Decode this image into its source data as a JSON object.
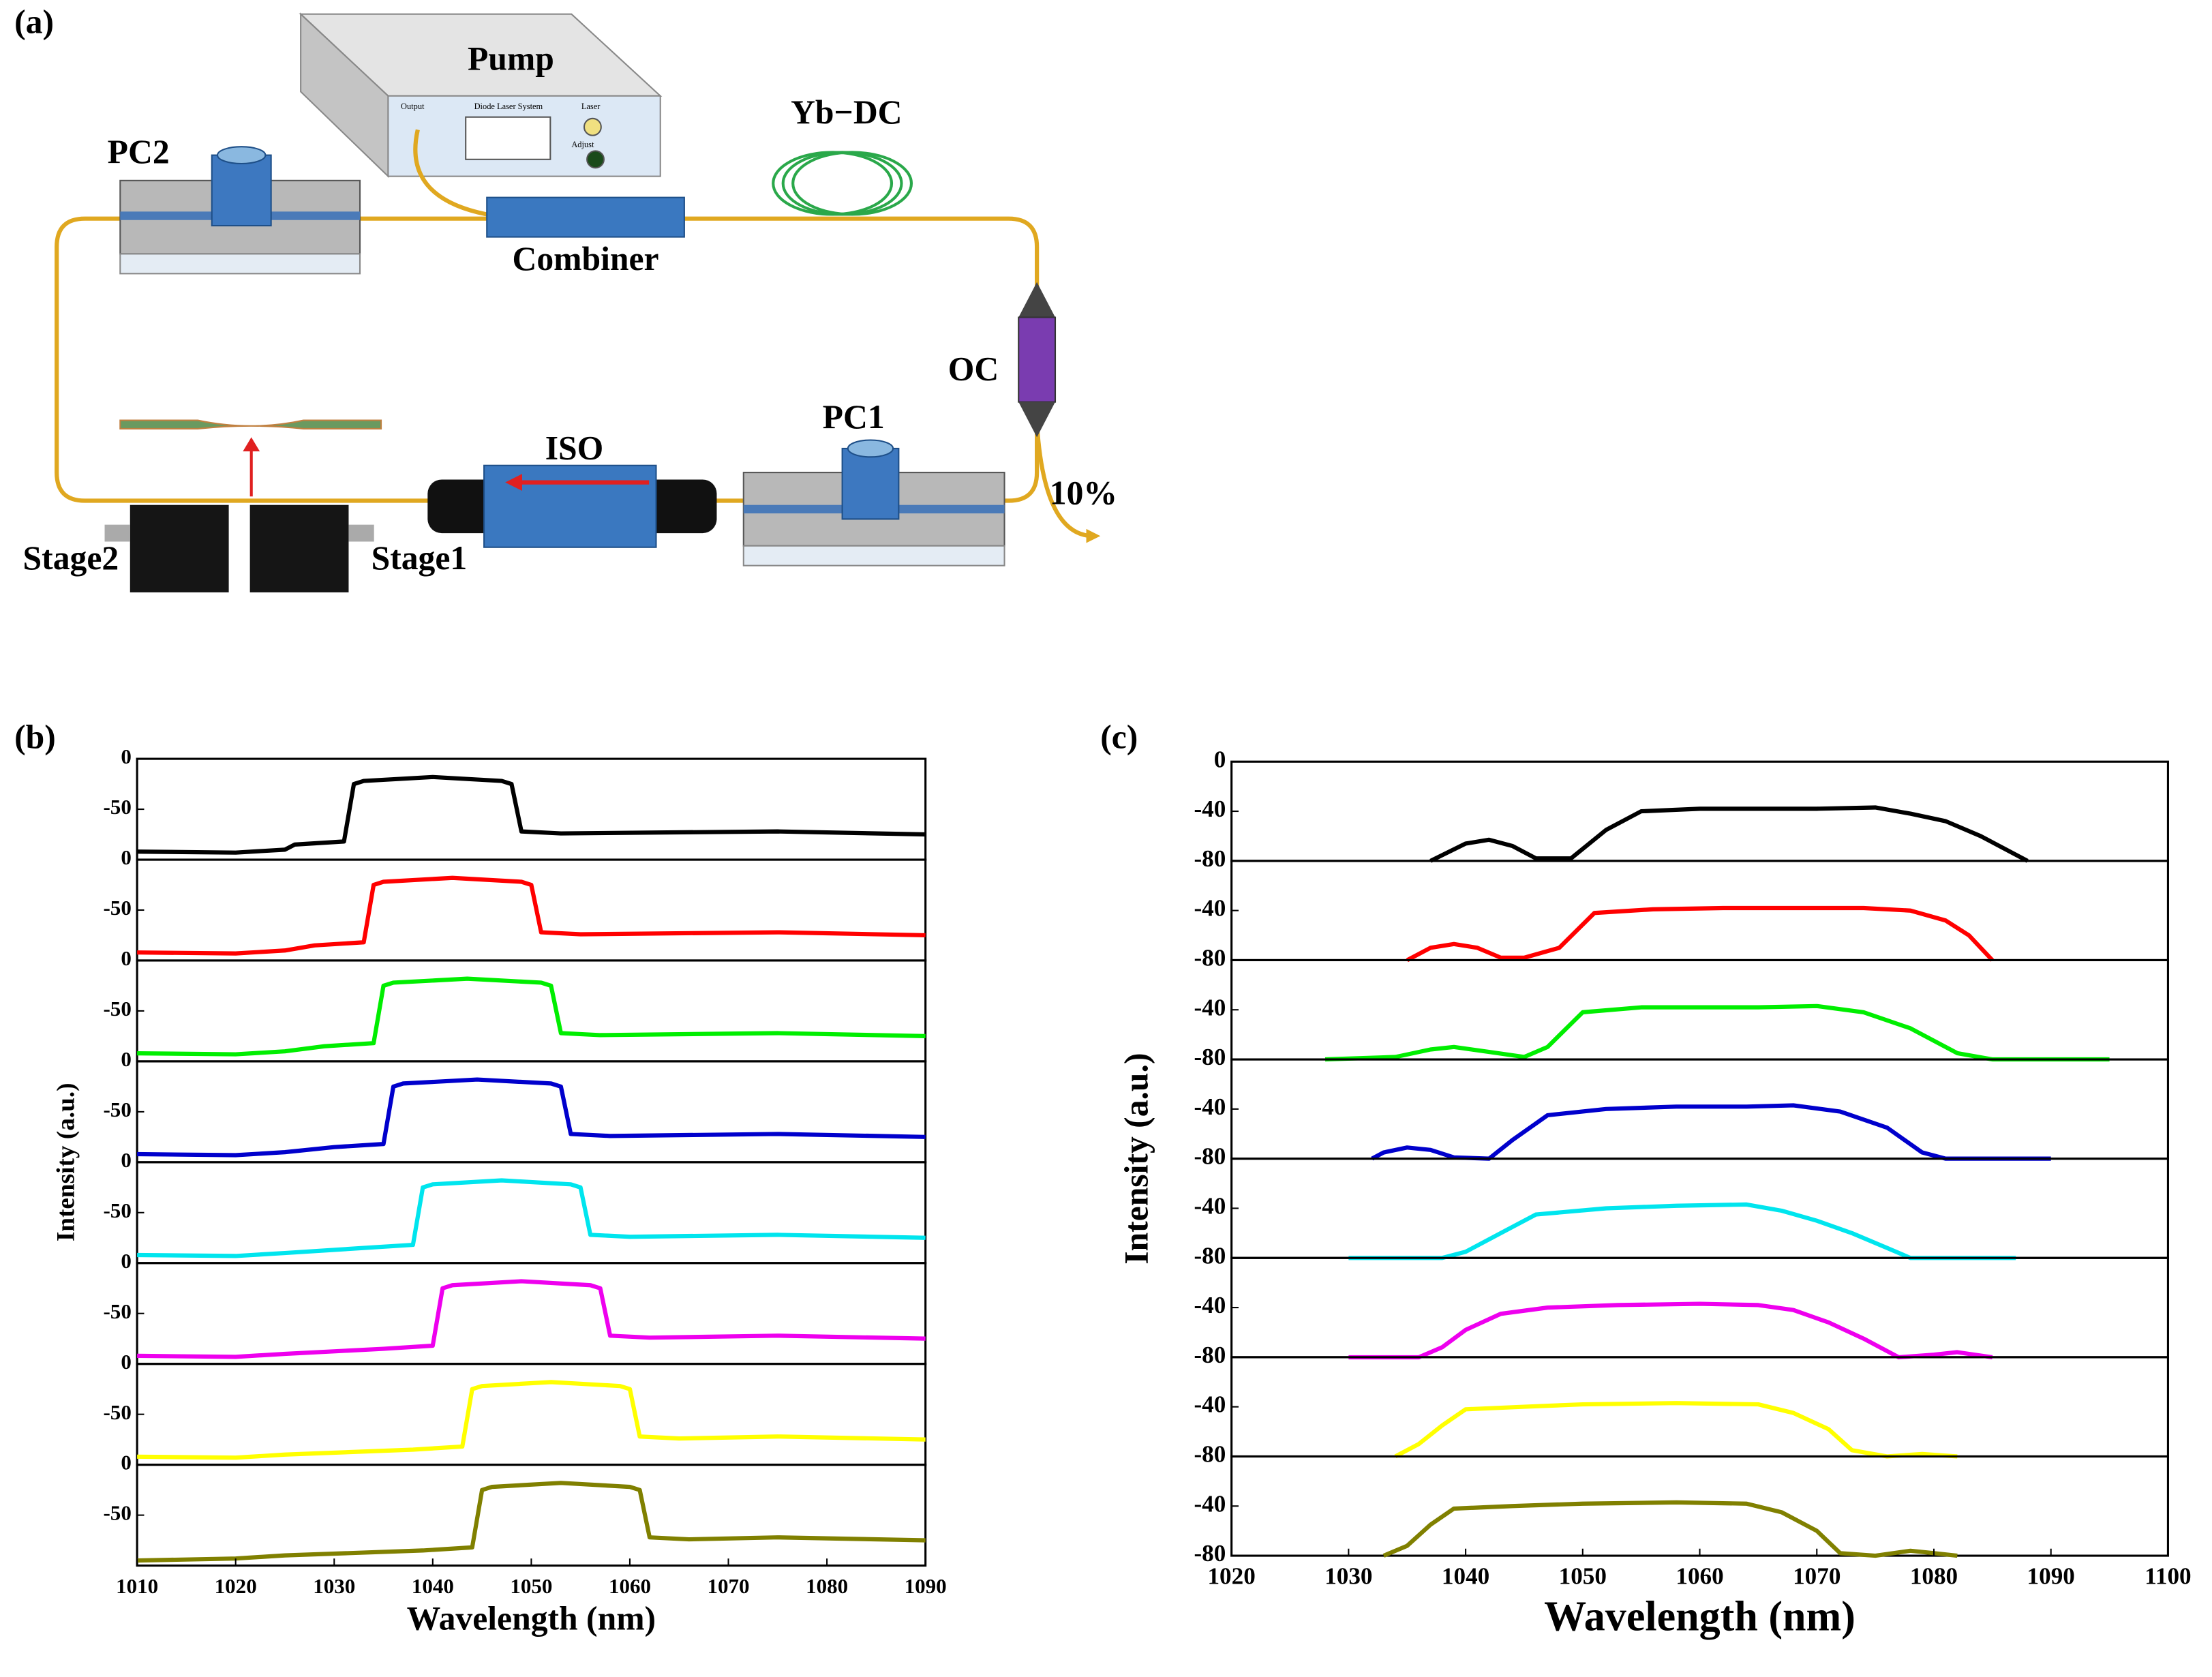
{
  "figure_a": {
    "panel_label": "(a)",
    "pump": "Pump",
    "output": "Output",
    "diode": "Diode Laser System",
    "laser": "Laser",
    "adjust": "Adjust",
    "ybdc": "Yb−DC",
    "pc2": "PC2",
    "combiner": "Combiner",
    "oc": "OC",
    "pc1": "PC1",
    "iso": "ISO",
    "ratio": "10%",
    "stage2": "Stage2",
    "stage1": "Stage1"
  },
  "chart_data": [
    {
      "type": "line",
      "panel_label": "(b)",
      "xlabel": "Wavelength (nm)",
      "ylabel": "Intensity (a.u.)",
      "xlim": [
        1010,
        1090
      ],
      "xticks": [
        1010,
        1020,
        1030,
        1040,
        1050,
        1060,
        1070,
        1080,
        1090
      ],
      "ylim": [
        -100,
        0
      ],
      "series": [
        {
          "color": "#000000",
          "yticks": [
            0,
            -50
          ],
          "x": [
            1010,
            1020,
            1025,
            1026,
            1031,
            1032,
            1033,
            1040,
            1047,
            1048,
            1049,
            1053,
            1075,
            1090
          ],
          "values": [
            -92,
            -93,
            -90,
            -85,
            -82,
            -25,
            -22,
            -18,
            -22,
            -25,
            -72,
            -74,
            -72,
            -75
          ]
        },
        {
          "color": "#ff0000",
          "yticks": [
            0,
            -50
          ],
          "x": [
            1010,
            1020,
            1025,
            1028,
            1033,
            1034,
            1035,
            1042,
            1049,
            1050,
            1051,
            1055,
            1075,
            1090
          ],
          "values": [
            -92,
            -93,
            -90,
            -85,
            -82,
            -25,
            -22,
            -18,
            -22,
            -25,
            -72,
            -74,
            -72,
            -75
          ]
        },
        {
          "color": "#00ee00",
          "yticks": [
            0,
            -50
          ],
          "x": [
            1010,
            1020,
            1025,
            1029,
            1034,
            1035,
            1036,
            1043.5,
            1051,
            1052,
            1053,
            1057,
            1075,
            1090
          ],
          "values": [
            -92,
            -93,
            -90,
            -85,
            -82,
            -25,
            -22,
            -18,
            -22,
            -25,
            -72,
            -74,
            -72,
            -75
          ]
        },
        {
          "color": "#0000cc",
          "yticks": [
            0,
            -50
          ],
          "x": [
            1010,
            1020,
            1025,
            1030,
            1035,
            1036,
            1037,
            1044.5,
            1052,
            1053,
            1054,
            1058,
            1075,
            1090
          ],
          "values": [
            -92,
            -93,
            -90,
            -85,
            -82,
            -25,
            -22,
            -18,
            -22,
            -25,
            -72,
            -74,
            -72,
            -75
          ]
        },
        {
          "color": "#00e5ee",
          "yticks": [
            0,
            -50
          ],
          "x": [
            1010,
            1020,
            1025,
            1033,
            1038,
            1039,
            1040,
            1047,
            1054,
            1055,
            1056,
            1060,
            1075,
            1090
          ],
          "values": [
            -92,
            -93,
            -90,
            -85,
            -82,
            -25,
            -22,
            -18,
            -22,
            -25,
            -72,
            -74,
            -72,
            -75
          ]
        },
        {
          "color": "#ee00ee",
          "yticks": [
            0,
            -50
          ],
          "x": [
            1010,
            1020,
            1025,
            1035,
            1040,
            1041,
            1042,
            1049,
            1056,
            1057,
            1058,
            1062,
            1075,
            1090
          ],
          "values": [
            -92,
            -93,
            -90,
            -85,
            -82,
            -25,
            -22,
            -18,
            -22,
            -25,
            -72,
            -74,
            -72,
            -75
          ]
        },
        {
          "color": "#ffff00",
          "yticks": [
            0,
            -50
          ],
          "x": [
            1010,
            1020,
            1025,
            1038,
            1043,
            1044,
            1045,
            1052,
            1059,
            1060,
            1061,
            1065,
            1075,
            1090
          ],
          "values": [
            -92,
            -93,
            -90,
            -85,
            -82,
            -25,
            -22,
            -18,
            -22,
            -25,
            -72,
            -74,
            -72,
            -75
          ]
        },
        {
          "color": "#808000",
          "yticks": [
            0,
            -50
          ],
          "x": [
            1010,
            1020,
            1025,
            1039,
            1044,
            1045,
            1046,
            1053,
            1060,
            1061,
            1062,
            1066,
            1075,
            1090
          ],
          "values": [
            -95,
            -93,
            -90,
            -85,
            -82,
            -25,
            -22,
            -18,
            -22,
            -25,
            -72,
            -74,
            -72,
            -75
          ]
        }
      ]
    },
    {
      "type": "line",
      "panel_label": "(c)",
      "xlabel": "Wavelength (nm)",
      "ylabel": "Intensity (a.u.)",
      "xlim": [
        1020,
        1100
      ],
      "xticks": [
        1020,
        1030,
        1040,
        1050,
        1060,
        1070,
        1080,
        1090,
        1100
      ],
      "ylim": [
        -80,
        0
      ],
      "series": [
        {
          "color": "#000000",
          "yticks": [
            0,
            -40,
            -80
          ],
          "x": [
            1037,
            1040,
            1042,
            1044,
            1046,
            1049,
            1052,
            1055,
            1060,
            1065,
            1070,
            1075,
            1078,
            1081,
            1084,
            1088
          ],
          "values": [
            -80,
            -66,
            -63,
            -68,
            -78,
            -78,
            -55,
            -40,
            -38,
            -38,
            -38,
            -37,
            -42,
            -48,
            -60,
            -80
          ]
        },
        {
          "color": "#ff0000",
          "yticks": [
            -40,
            -80
          ],
          "x": [
            1035,
            1037,
            1039,
            1041,
            1043,
            1045,
            1048,
            1051,
            1056,
            1062,
            1068,
            1074,
            1078,
            1081,
            1083,
            1085
          ],
          "values": [
            -80,
            -70,
            -67,
            -70,
            -78,
            -78,
            -70,
            -42,
            -39,
            -38,
            -38,
            -38,
            -40,
            -48,
            -60,
            -80
          ]
        },
        {
          "color": "#00ee00",
          "yticks": [
            -40,
            -80
          ],
          "x": [
            1028,
            1034,
            1037,
            1039,
            1042,
            1045,
            1047,
            1050,
            1055,
            1060,
            1065,
            1070,
            1074,
            1078,
            1082,
            1085,
            1095
          ],
          "values": [
            -80,
            -78,
            -72,
            -70,
            -74,
            -78,
            -70,
            -42,
            -38,
            -38,
            -38,
            -37,
            -42,
            -55,
            -75,
            -80,
            -80
          ]
        },
        {
          "color": "#0000cc",
          "yticks": [
            -40,
            -80
          ],
          "x": [
            1032,
            1033,
            1035,
            1037,
            1039,
            1042,
            1044,
            1047,
            1052,
            1058,
            1064,
            1068,
            1072,
            1076,
            1079,
            1081,
            1090
          ],
          "values": [
            -80,
            -75,
            -71,
            -73,
            -79,
            -80,
            -65,
            -45,
            -40,
            -38,
            -38,
            -37,
            -42,
            -55,
            -75,
            -80,
            -80
          ]
        },
        {
          "color": "#00e5ee",
          "yticks": [
            -40,
            -80
          ],
          "x": [
            1030,
            1034,
            1038,
            1040,
            1043,
            1046,
            1052,
            1058,
            1064,
            1067,
            1070,
            1073,
            1076,
            1078,
            1087
          ],
          "values": [
            -80,
            -80,
            -80,
            -75,
            -60,
            -45,
            -40,
            -38,
            -37,
            -42,
            -50,
            -60,
            -72,
            -80,
            -80
          ]
        },
        {
          "color": "#ee00ee",
          "yticks": [
            -40,
            -80
          ],
          "x": [
            1030,
            1036,
            1038,
            1040,
            1043,
            1047,
            1053,
            1060,
            1065,
            1068,
            1071,
            1074,
            1077,
            1080,
            1082,
            1085
          ],
          "values": [
            -80,
            -80,
            -72,
            -58,
            -45,
            -40,
            -38,
            -37,
            -38,
            -42,
            -52,
            -65,
            -80,
            -78,
            -76,
            -80
          ]
        },
        {
          "color": "#ffff00",
          "yticks": [
            -40,
            -80
          ],
          "x": [
            1034,
            1036,
            1038,
            1040,
            1045,
            1050,
            1058,
            1065,
            1068,
            1071,
            1073,
            1076,
            1079,
            1082
          ],
          "values": [
            -80,
            -70,
            -55,
            -42,
            -40,
            -38,
            -37,
            -38,
            -45,
            -58,
            -75,
            -80,
            -78,
            -80
          ]
        },
        {
          "color": "#808000",
          "yticks": [
            -40,
            -80
          ],
          "x": [
            1033,
            1035,
            1037,
            1039,
            1044,
            1050,
            1058,
            1064,
            1067,
            1070,
            1072,
            1075,
            1078,
            1080,
            1082
          ],
          "values": [
            -80,
            -72,
            -55,
            -42,
            -40,
            -38,
            -37,
            -38,
            -45,
            -60,
            -78,
            -80,
            -76,
            -78,
            -80
          ]
        }
      ]
    }
  ]
}
